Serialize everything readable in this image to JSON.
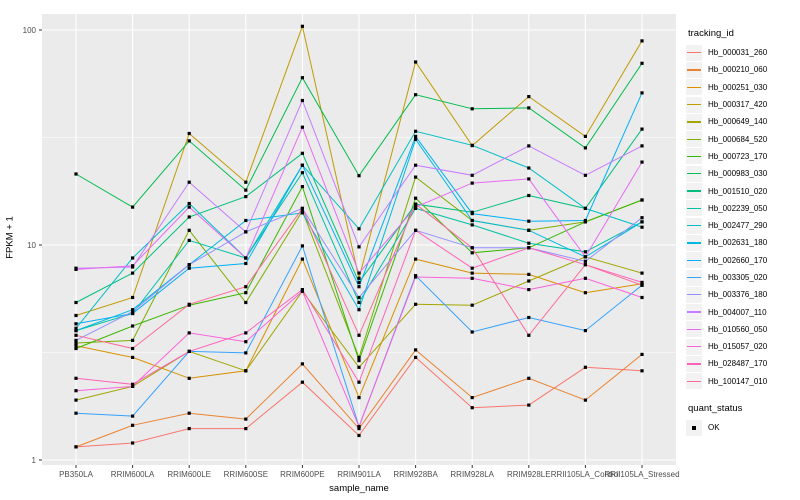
{
  "chart_data": {
    "type": "line",
    "title": "",
    "xlabel": "sample_name",
    "ylabel": "FPKM + 1",
    "y_scale": "log10",
    "y_ticks": [
      1,
      10,
      100
    ],
    "y_minor_ticks": [
      3.162,
      31.62
    ],
    "ylim": [
      1,
      110
    ],
    "grid": true,
    "categories": [
      "PB350LA",
      "RRIM600LA",
      "RRIM600LE",
      "RRIM600SE",
      "RRIM600PE",
      "RRIM901LA",
      "RRIM928BA",
      "RRIM928LA",
      "RRIM928LE",
      "RRII105LA_Control",
      "RRII105LA_Stressed"
    ],
    "series": [
      {
        "name": "Hb_000031_260",
        "color": "#F8766D",
        "values": [
          1.15,
          1.2,
          1.4,
          1.4,
          2.3,
          1.3,
          3.0,
          1.75,
          1.8,
          2.7,
          2.6
        ]
      },
      {
        "name": "Hb_000210_060",
        "color": "#EA8331",
        "values": [
          1.15,
          1.45,
          1.65,
          1.55,
          2.8,
          1.4,
          3.25,
          1.95,
          2.4,
          1.9,
          3.1
        ]
      },
      {
        "name": "Hb_000251_030",
        "color": "#D89000",
        "values": [
          3.4,
          3.0,
          2.4,
          2.6,
          8.6,
          1.95,
          8.6,
          7.4,
          7.3,
          6.0,
          6.6
        ]
      },
      {
        "name": "Hb_000317_420",
        "color": "#C09B00",
        "values": [
          4.7,
          5.7,
          33,
          19.6,
          104,
          7.0,
          71,
          29,
          49,
          32,
          89
        ]
      },
      {
        "name": "Hb_000649_140",
        "color": "#A3A500",
        "values": [
          1.9,
          2.2,
          3.2,
          2.6,
          6.1,
          2.7,
          5.3,
          5.25,
          6.8,
          8.8,
          7.4
        ]
      },
      {
        "name": "Hb_000684_520",
        "color": "#7CAE00",
        "values": [
          3.5,
          3.6,
          11.7,
          5.4,
          14.4,
          3.0,
          20.7,
          13,
          11.7,
          12.8,
          16.2
        ]
      },
      {
        "name": "Hb_000723_170",
        "color": "#39B600",
        "values": [
          3.3,
          4.2,
          5.25,
          6.0,
          18.7,
          2.9,
          16.5,
          9.2,
          9.7,
          12.8,
          16.2
        ]
      },
      {
        "name": "Hb_000983_030",
        "color": "#00BB4E",
        "values": [
          21.4,
          15,
          30.5,
          18,
          60,
          21,
          50,
          43,
          43.4,
          28.3,
          70
        ]
      },
      {
        "name": "Hb_001510_020",
        "color": "#00BF7D",
        "values": [
          5.4,
          7.4,
          13.5,
          16.8,
          26.7,
          6.7,
          15.5,
          14.2,
          17,
          14.8,
          34.6
        ]
      },
      {
        "name": "Hb_002239_050",
        "color": "#00C1A3",
        "values": [
          4.0,
          4.8,
          10.5,
          8.7,
          21.7,
          5.4,
          14.8,
          12.4,
          10.2,
          9.3,
          12.8
        ]
      },
      {
        "name": "Hb_002477_290",
        "color": "#00BFC4",
        "values": [
          4.1,
          8.7,
          15.6,
          8.7,
          23.5,
          11.9,
          33.8,
          29.1,
          22.8,
          14.8,
          12.1
        ]
      },
      {
        "name": "Hb_002631_180",
        "color": "#00BAE0",
        "values": [
          4.0,
          5.0,
          8.1,
          13,
          14.1,
          5.0,
          31,
          13,
          11.7,
          8.8,
          12.8
        ]
      },
      {
        "name": "Hb_002660_170",
        "color": "#00B0F6",
        "values": [
          4.3,
          4.8,
          7.8,
          8.2,
          23.5,
          6.4,
          32,
          14,
          12.9,
          13,
          51
        ]
      },
      {
        "name": "Hb_003305_020",
        "color": "#35A2FF",
        "values": [
          1.65,
          1.6,
          3.2,
          3.15,
          9.9,
          1.43,
          7.2,
          3.94,
          4.6,
          4.0,
          6.5
        ]
      },
      {
        "name": "Hb_003376_180",
        "color": "#9590FF",
        "values": [
          3.6,
          4.9,
          8.1,
          11.5,
          14.8,
          5.7,
          11.7,
          9.7,
          9.7,
          8.4,
          13.4
        ]
      },
      {
        "name": "Hb_004007_110",
        "color": "#C77CFF",
        "values": [
          7.8,
          7.9,
          19.6,
          11.5,
          47,
          9.8,
          23.5,
          21.1,
          28.9,
          21.1,
          28.9
        ]
      },
      {
        "name": "Hb_010560_050",
        "color": "#E76BF3",
        "values": [
          7.7,
          8.0,
          15.0,
          8.7,
          35.3,
          7.4,
          15.0,
          19.4,
          20.3,
          8.8,
          24.3
        ]
      },
      {
        "name": "Hb_015057_020",
        "color": "#FA62DB",
        "values": [
          2.1,
          2.2,
          3.9,
          3.55,
          6.1,
          1.43,
          7.1,
          7.0,
          6.2,
          7.0,
          5.7
        ]
      },
      {
        "name": "Hb_028487_170",
        "color": "#FF62BC",
        "values": [
          2.4,
          2.25,
          3.2,
          3.9,
          6.2,
          2.3,
          11.7,
          7.8,
          9.7,
          8.1,
          6.7
        ]
      },
      {
        "name": "Hb_100147_010",
        "color": "#FF6A98",
        "values": [
          3.8,
          3.3,
          5.3,
          6.4,
          14.8,
          3.8,
          15.5,
          9.7,
          3.8,
          8.1,
          6.5
        ]
      }
    ],
    "legend": {
      "position": "right",
      "color_title": "tracking_id",
      "shape_title": "quant_status",
      "shape_items": [
        {
          "label": "OK",
          "shape": "filled-square"
        }
      ]
    },
    "style": {
      "panel_bg": "#EBEBEB",
      "grid_color": "#FFFFFF",
      "tick_label_color": "#4D4D4D",
      "tick_mark_color": "#333333",
      "point_color": "#000000",
      "legend_key_bg": "#F2F2F2"
    }
  }
}
